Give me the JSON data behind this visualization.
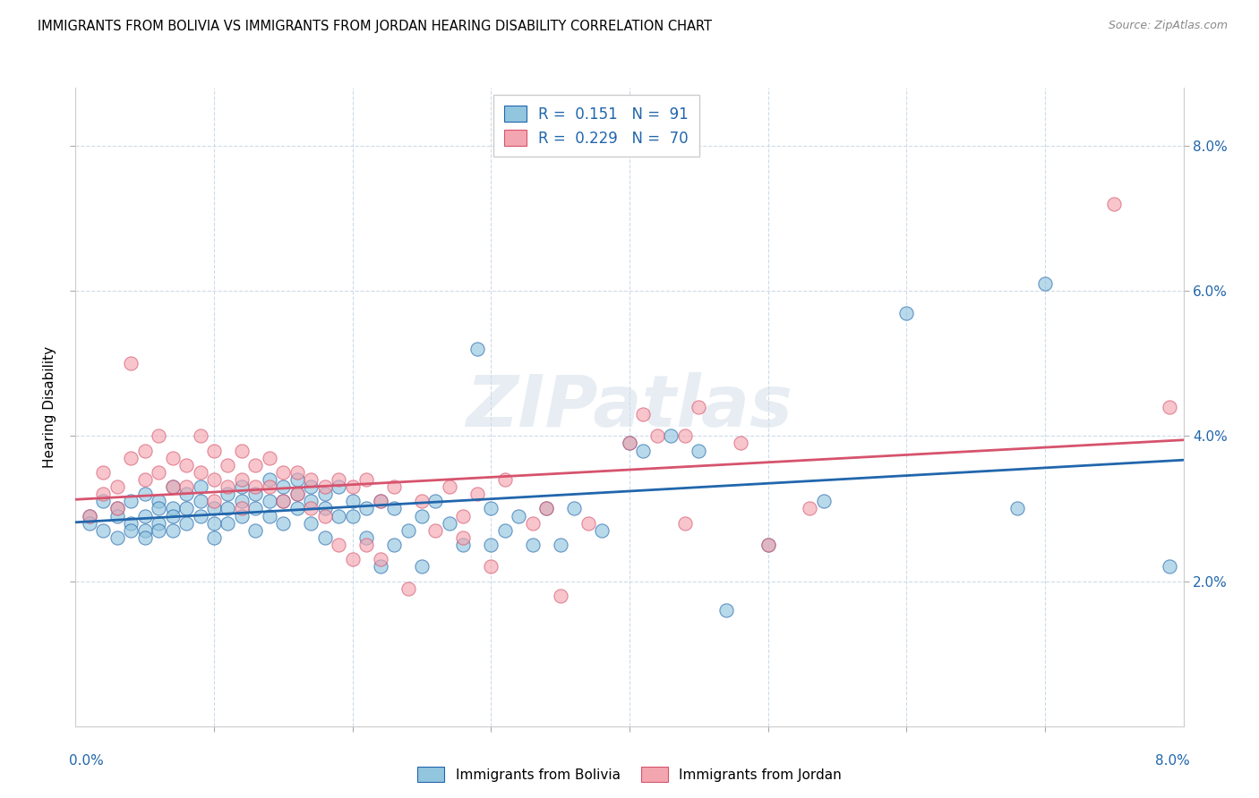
{
  "title": "IMMIGRANTS FROM BOLIVIA VS IMMIGRANTS FROM JORDAN HEARING DISABILITY CORRELATION CHART",
  "source": "Source: ZipAtlas.com",
  "ylabel": "Hearing Disability",
  "xlim": [
    0.0,
    0.08
  ],
  "ylim": [
    0.0,
    0.088
  ],
  "yticks": [
    0.02,
    0.04,
    0.06,
    0.08
  ],
  "xticks": [
    0.0,
    0.01,
    0.02,
    0.03,
    0.04,
    0.05,
    0.06,
    0.07,
    0.08
  ],
  "bolivia_color": "#92c5de",
  "jordan_color": "#f4a6b0",
  "bolivia_line_color": "#2166ac",
  "jordan_line_color": "#d6536d",
  "bolivia_R": 0.151,
  "bolivia_N": 91,
  "jordan_R": 0.229,
  "jordan_N": 70,
  "watermark": "ZIPatlas",
  "bolivia_scatter": [
    [
      0.001,
      0.029
    ],
    [
      0.001,
      0.028
    ],
    [
      0.002,
      0.031
    ],
    [
      0.002,
      0.027
    ],
    [
      0.003,
      0.03
    ],
    [
      0.003,
      0.029
    ],
    [
      0.003,
      0.026
    ],
    [
      0.004,
      0.031
    ],
    [
      0.004,
      0.028
    ],
    [
      0.004,
      0.027
    ],
    [
      0.005,
      0.032
    ],
    [
      0.005,
      0.029
    ],
    [
      0.005,
      0.027
    ],
    [
      0.005,
      0.026
    ],
    [
      0.006,
      0.031
    ],
    [
      0.006,
      0.03
    ],
    [
      0.006,
      0.028
    ],
    [
      0.006,
      0.027
    ],
    [
      0.007,
      0.033
    ],
    [
      0.007,
      0.03
    ],
    [
      0.007,
      0.029
    ],
    [
      0.007,
      0.027
    ],
    [
      0.008,
      0.032
    ],
    [
      0.008,
      0.03
    ],
    [
      0.008,
      0.028
    ],
    [
      0.009,
      0.033
    ],
    [
      0.009,
      0.031
    ],
    [
      0.009,
      0.029
    ],
    [
      0.01,
      0.03
    ],
    [
      0.01,
      0.028
    ],
    [
      0.01,
      0.026
    ],
    [
      0.011,
      0.032
    ],
    [
      0.011,
      0.03
    ],
    [
      0.011,
      0.028
    ],
    [
      0.012,
      0.033
    ],
    [
      0.012,
      0.031
    ],
    [
      0.012,
      0.029
    ],
    [
      0.013,
      0.032
    ],
    [
      0.013,
      0.03
    ],
    [
      0.013,
      0.027
    ],
    [
      0.014,
      0.034
    ],
    [
      0.014,
      0.031
    ],
    [
      0.014,
      0.029
    ],
    [
      0.015,
      0.033
    ],
    [
      0.015,
      0.031
    ],
    [
      0.015,
      0.028
    ],
    [
      0.016,
      0.034
    ],
    [
      0.016,
      0.032
    ],
    [
      0.016,
      0.03
    ],
    [
      0.017,
      0.033
    ],
    [
      0.017,
      0.031
    ],
    [
      0.017,
      0.028
    ],
    [
      0.018,
      0.032
    ],
    [
      0.018,
      0.03
    ],
    [
      0.018,
      0.026
    ],
    [
      0.019,
      0.033
    ],
    [
      0.019,
      0.029
    ],
    [
      0.02,
      0.031
    ],
    [
      0.02,
      0.029
    ],
    [
      0.021,
      0.03
    ],
    [
      0.021,
      0.026
    ],
    [
      0.022,
      0.031
    ],
    [
      0.022,
      0.022
    ],
    [
      0.023,
      0.03
    ],
    [
      0.023,
      0.025
    ],
    [
      0.024,
      0.027
    ],
    [
      0.025,
      0.029
    ],
    [
      0.025,
      0.022
    ],
    [
      0.026,
      0.031
    ],
    [
      0.027,
      0.028
    ],
    [
      0.028,
      0.025
    ],
    [
      0.029,
      0.052
    ],
    [
      0.03,
      0.03
    ],
    [
      0.03,
      0.025
    ],
    [
      0.031,
      0.027
    ],
    [
      0.032,
      0.029
    ],
    [
      0.033,
      0.025
    ],
    [
      0.034,
      0.03
    ],
    [
      0.035,
      0.025
    ],
    [
      0.036,
      0.03
    ],
    [
      0.038,
      0.027
    ],
    [
      0.04,
      0.039
    ],
    [
      0.041,
      0.038
    ],
    [
      0.043,
      0.04
    ],
    [
      0.045,
      0.038
    ],
    [
      0.047,
      0.016
    ],
    [
      0.05,
      0.025
    ],
    [
      0.054,
      0.031
    ],
    [
      0.06,
      0.057
    ],
    [
      0.068,
      0.03
    ],
    [
      0.07,
      0.061
    ],
    [
      0.079,
      0.022
    ]
  ],
  "jordan_scatter": [
    [
      0.001,
      0.029
    ],
    [
      0.002,
      0.032
    ],
    [
      0.002,
      0.035
    ],
    [
      0.003,
      0.033
    ],
    [
      0.003,
      0.03
    ],
    [
      0.004,
      0.05
    ],
    [
      0.004,
      0.037
    ],
    [
      0.005,
      0.034
    ],
    [
      0.005,
      0.038
    ],
    [
      0.006,
      0.04
    ],
    [
      0.006,
      0.035
    ],
    [
      0.007,
      0.037
    ],
    [
      0.007,
      0.033
    ],
    [
      0.008,
      0.036
    ],
    [
      0.008,
      0.033
    ],
    [
      0.009,
      0.04
    ],
    [
      0.009,
      0.035
    ],
    [
      0.01,
      0.038
    ],
    [
      0.01,
      0.034
    ],
    [
      0.01,
      0.031
    ],
    [
      0.011,
      0.036
    ],
    [
      0.011,
      0.033
    ],
    [
      0.012,
      0.038
    ],
    [
      0.012,
      0.034
    ],
    [
      0.012,
      0.03
    ],
    [
      0.013,
      0.036
    ],
    [
      0.013,
      0.033
    ],
    [
      0.014,
      0.037
    ],
    [
      0.014,
      0.033
    ],
    [
      0.015,
      0.035
    ],
    [
      0.015,
      0.031
    ],
    [
      0.016,
      0.035
    ],
    [
      0.016,
      0.032
    ],
    [
      0.017,
      0.034
    ],
    [
      0.017,
      0.03
    ],
    [
      0.018,
      0.033
    ],
    [
      0.018,
      0.029
    ],
    [
      0.019,
      0.034
    ],
    [
      0.019,
      0.025
    ],
    [
      0.02,
      0.033
    ],
    [
      0.02,
      0.023
    ],
    [
      0.021,
      0.034
    ],
    [
      0.021,
      0.025
    ],
    [
      0.022,
      0.031
    ],
    [
      0.022,
      0.023
    ],
    [
      0.023,
      0.033
    ],
    [
      0.024,
      0.019
    ],
    [
      0.025,
      0.031
    ],
    [
      0.026,
      0.027
    ],
    [
      0.027,
      0.033
    ],
    [
      0.028,
      0.029
    ],
    [
      0.028,
      0.026
    ],
    [
      0.029,
      0.032
    ],
    [
      0.03,
      0.022
    ],
    [
      0.031,
      0.034
    ],
    [
      0.033,
      0.028
    ],
    [
      0.034,
      0.03
    ],
    [
      0.035,
      0.018
    ],
    [
      0.037,
      0.028
    ],
    [
      0.04,
      0.039
    ],
    [
      0.041,
      0.043
    ],
    [
      0.042,
      0.04
    ],
    [
      0.044,
      0.028
    ],
    [
      0.044,
      0.04
    ],
    [
      0.045,
      0.044
    ],
    [
      0.048,
      0.039
    ],
    [
      0.05,
      0.025
    ],
    [
      0.053,
      0.03
    ],
    [
      0.075,
      0.072
    ],
    [
      0.079,
      0.044
    ]
  ]
}
